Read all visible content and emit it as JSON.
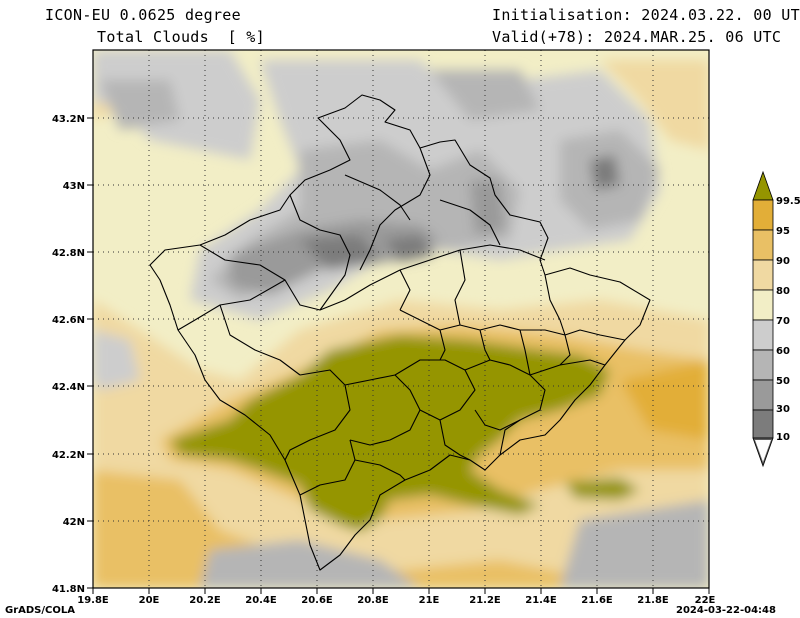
{
  "header": {
    "model": "ICON-EU 0.0625 degree",
    "variable": "Total Clouds  [ %]",
    "init": "Initialisation: 2024.03.22. 00 UTC",
    "valid": "Valid(+78): 2024.MAR.25. 06 UTC"
  },
  "axes": {
    "x_ticks": [
      "19.8E",
      "20E",
      "20.2E",
      "20.4E",
      "20.6E",
      "20.8E",
      "21E",
      "21.2E",
      "21.4E",
      "21.6E",
      "21.8E",
      "22E"
    ],
    "y_ticks": [
      "43.2N",
      "43N",
      "42.8N",
      "42.6N",
      "42.4N",
      "42.2N",
      "42N",
      "41.8N"
    ]
  },
  "colorbar": {
    "labels": [
      "99.5",
      "95",
      "90",
      "80",
      "70",
      "60",
      "50",
      "30",
      "10"
    ],
    "colors": {
      "c0": "#fdfdfd",
      "c10": "#5c5c5c",
      "c30": "#7c7c7c",
      "c50": "#9a9a9a",
      "c60": "#b5b5b5",
      "c70": "#cdcdcd",
      "c80": "#f2eec6",
      "c90": "#f0d9a2",
      "c95": "#e9c065",
      "c99": "#e2ae38",
      "c100": "#959500"
    }
  },
  "footer": {
    "left": "GrADS/COLA",
    "right": "2024-03-22-04:48"
  }
}
